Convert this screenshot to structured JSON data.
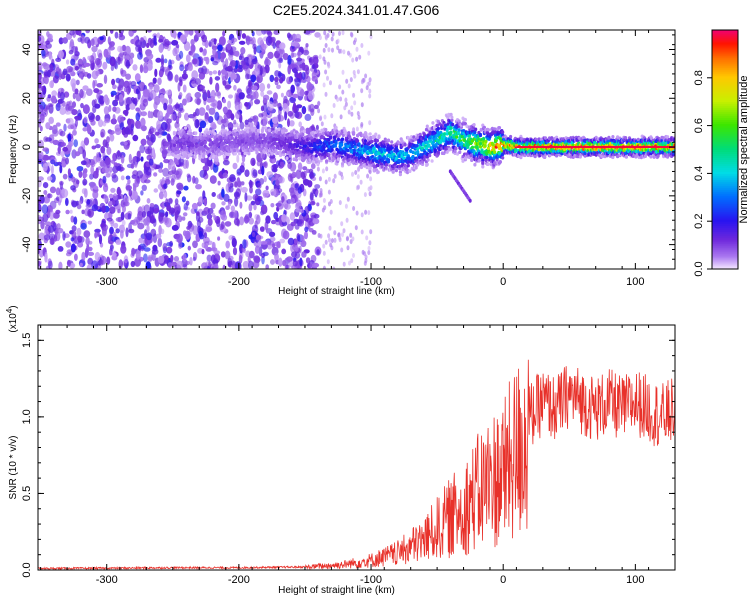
{
  "title": "C2E5.2024.341.01.47.G06",
  "colors": {
    "snr_line": "#e8312a",
    "axis": "#000000",
    "background": "#ffffff"
  },
  "chart_data": [
    {
      "type": "heatmap",
      "xlabel": "Height of straight line (km)",
      "ylabel": "Frequency (Hz)",
      "xlim": [
        -352,
        130
      ],
      "ylim": [
        -50,
        48
      ],
      "x_ticks": [
        -300,
        -200,
        -100,
        0,
        100
      ],
      "x_tick_labels": [
        "-300",
        "-200",
        "-100",
        "0",
        "100"
      ],
      "y_ticks": [
        -40,
        -20,
        0,
        20,
        40
      ],
      "y_tick_labels": [
        "-40",
        "-20",
        "0",
        "20",
        "40"
      ],
      "colorbar": {
        "label": "Normalized spectral amplitude",
        "range": [
          0,
          1
        ],
        "ticks": [
          0.0,
          0.2,
          0.4,
          0.6,
          0.8
        ],
        "tick_labels": [
          "0.0",
          "0.2",
          "0.4",
          "0.6",
          "0.8"
        ],
        "colormap": "rainbow"
      },
      "noise_region": {
        "x_range": [
          -352,
          -140
        ],
        "amplitude": 0.1
      },
      "transition_region": {
        "x_range": [
          -140,
          -100
        ],
        "amplitude": 0.05
      },
      "signal_ridge": {
        "x": [
          -250,
          -240,
          -230,
          -180,
          -170,
          -160,
          -150,
          -140,
          -130,
          -120,
          -110,
          -100,
          -90,
          -80,
          -70,
          -60,
          -50,
          -40,
          -30,
          -20,
          -10,
          0,
          10,
          20,
          40,
          60,
          80,
          100,
          120,
          130
        ],
        "frequency": [
          1,
          2,
          1,
          3,
          2,
          1,
          0,
          0,
          1,
          0,
          -1,
          -2,
          -3,
          -4,
          -3,
          0,
          3,
          6,
          3,
          1,
          0,
          1,
          0,
          0,
          0,
          0,
          0,
          0,
          0,
          0
        ],
        "amplitude": [
          0.1,
          0.12,
          0.1,
          0.1,
          0.12,
          0.15,
          0.2,
          0.25,
          0.3,
          0.35,
          0.35,
          0.4,
          0.4,
          0.4,
          0.4,
          0.45,
          0.5,
          0.55,
          0.6,
          0.75,
          0.85,
          0.9,
          0.9,
          0.95,
          0.95,
          0.95,
          0.95,
          0.95,
          0.95,
          0.95
        ]
      },
      "side_feature": {
        "x": [
          -40,
          -25
        ],
        "frequency": [
          -10,
          -22
        ]
      }
    },
    {
      "type": "line",
      "xlabel": "Height of straight line (km)",
      "ylabel": "SNR (10 * v/v)",
      "scale_label": "(x10",
      "scale_exp": "4",
      "scale_close": ")",
      "xlim": [
        -352,
        130
      ],
      "ylim": [
        0,
        1.6
      ],
      "x_ticks": [
        -300,
        -200,
        -100,
        0,
        100
      ],
      "x_tick_labels": [
        "-300",
        "-200",
        "-100",
        "0",
        "100"
      ],
      "y_ticks": [
        0.0,
        0.5,
        1.0,
        1.5
      ],
      "y_tick_labels": [
        "0.0",
        "0.5",
        "1.0",
        "1.5"
      ],
      "series": [
        {
          "x": [
            -352,
            -300,
            -250,
            -200,
            -150,
            -120,
            -100,
            -80,
            -60,
            -50,
            -40,
            -30,
            -20,
            -10,
            0,
            10,
            20,
            30,
            40,
            50,
            60,
            70,
            80,
            90,
            100,
            110,
            120,
            130
          ],
          "y": [
            0.01,
            0.012,
            0.015,
            0.015,
            0.02,
            0.04,
            0.07,
            0.12,
            0.22,
            0.3,
            0.38,
            0.45,
            0.55,
            0.65,
            0.7,
            0.85,
            1.0,
            1.1,
            1.05,
            1.15,
            1.1,
            1.05,
            1.1,
            1.05,
            1.1,
            1.05,
            1.0,
            1.05
          ]
        }
      ]
    }
  ]
}
